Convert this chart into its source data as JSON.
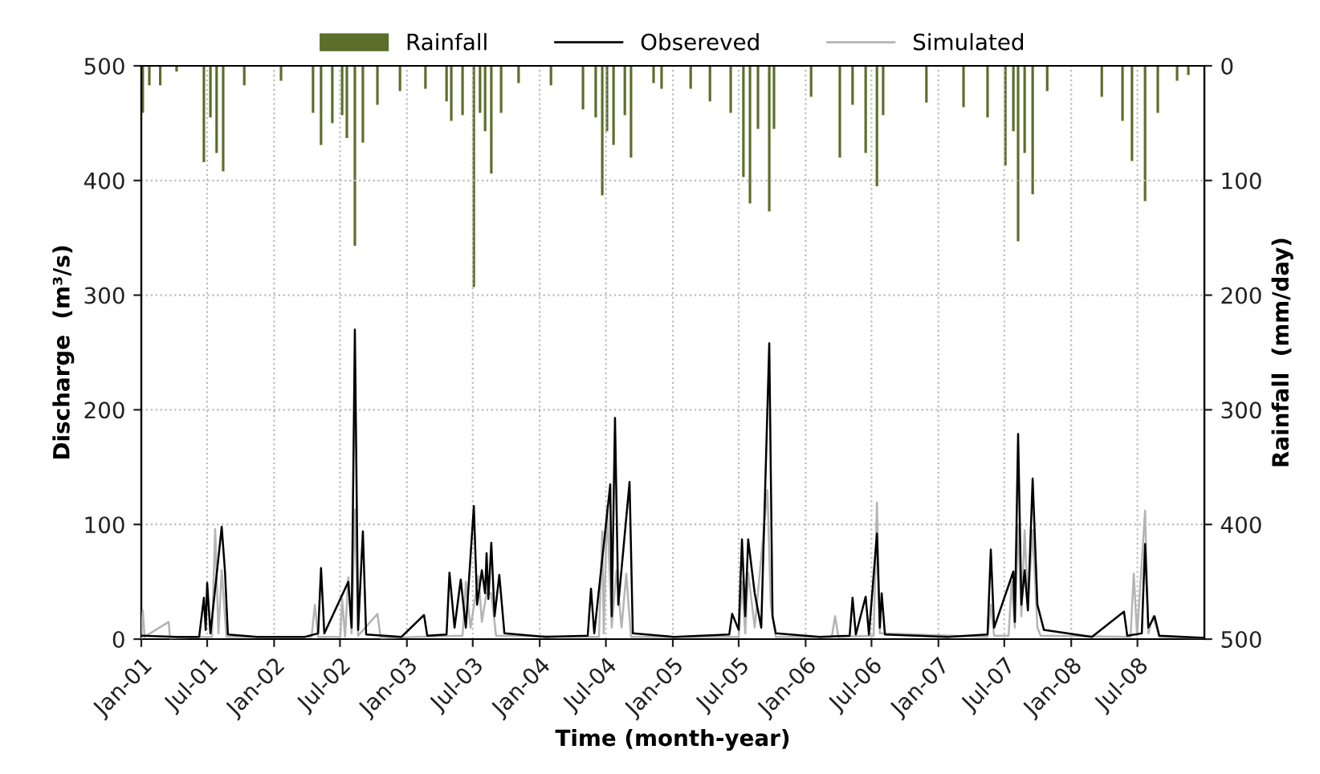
{
  "chart_data": {
    "type": "line",
    "xlabel": "Time (month-year)",
    "ylabel": "Discharge  (m³/s)",
    "y2label": "Rainfall  (mm/day)",
    "xlim": [
      "2001-01-01",
      "2009-01-01"
    ],
    "xticks": [
      {
        "value": "2001-01-01",
        "label": "Jan-01"
      },
      {
        "value": "2001-07-01",
        "label": "Jul-01"
      },
      {
        "value": "2002-01-01",
        "label": "Jan-02"
      },
      {
        "value": "2002-07-01",
        "label": "Jul-02"
      },
      {
        "value": "2003-01-01",
        "label": "Jan-03"
      },
      {
        "value": "2003-07-01",
        "label": "Jul-03"
      },
      {
        "value": "2004-01-01",
        "label": "Jan-04"
      },
      {
        "value": "2004-07-01",
        "label": "Jul-04"
      },
      {
        "value": "2005-01-01",
        "label": "Jan-05"
      },
      {
        "value": "2005-07-01",
        "label": "Jul-05"
      },
      {
        "value": "2006-01-01",
        "label": "Jan-06"
      },
      {
        "value": "2006-07-01",
        "label": "Jul-06"
      },
      {
        "value": "2007-01-01",
        "label": "Jan-07"
      },
      {
        "value": "2007-07-01",
        "label": "Jul-07"
      },
      {
        "value": "2008-01-01",
        "label": "Jan-08"
      },
      {
        "value": "2008-07-01",
        "label": "Jul-08"
      }
    ],
    "ylim": [
      0,
      500
    ],
    "yticks": [
      0,
      100,
      200,
      300,
      400,
      500
    ],
    "y2lim": [
      500,
      0
    ],
    "y2ticks": [
      0,
      100,
      200,
      300,
      400,
      500
    ],
    "grid": true,
    "legend": "top",
    "series": [
      {
        "name": "Rainfall",
        "type": "bar",
        "axis": "y2",
        "color": "#5b6e2a",
        "x": [
          "2001-01-05",
          "2001-01-23",
          "2001-02-22",
          "2001-04-08",
          "2001-06-22",
          "2001-07-10",
          "2001-07-27",
          "2001-08-14",
          "2001-10-11",
          "2002-01-20",
          "2002-04-18",
          "2002-05-10",
          "2002-06-10",
          "2002-07-07",
          "2002-07-20",
          "2002-08-11",
          "2002-09-02",
          "2002-10-12",
          "2002-12-13",
          "2003-02-21",
          "2003-04-20",
          "2003-05-03",
          "2003-06-03",
          "2003-07-04",
          "2003-07-21",
          "2003-08-04",
          "2003-08-21",
          "2003-09-17",
          "2003-11-04",
          "2004-02-01",
          "2004-04-29",
          "2004-06-03",
          "2004-06-21",
          "2004-07-04",
          "2004-07-22",
          "2004-08-22",
          "2004-09-08",
          "2004-11-09",
          "2004-12-01",
          "2005-02-19",
          "2005-04-13",
          "2005-06-09",
          "2005-07-14",
          "2005-08-01",
          "2005-08-23",
          "2005-09-23",
          "2005-10-06",
          "2006-01-16",
          "2006-04-05",
          "2006-05-10",
          "2006-06-15",
          "2006-07-16",
          "2006-08-02",
          "2006-11-29",
          "2007-03-11",
          "2007-05-16",
          "2007-07-04",
          "2007-07-26",
          "2007-08-08",
          "2007-08-26",
          "2007-09-17",
          "2007-10-27",
          "2008-03-25",
          "2008-05-21",
          "2008-06-16",
          "2008-07-22",
          "2008-08-26",
          "2008-10-18",
          "2008-11-18"
        ],
        "values": [
          41,
          17,
          17,
          5,
          84,
          45,
          76,
          92,
          17,
          13,
          41,
          69,
          50,
          43,
          63,
          157,
          67,
          34,
          22,
          20,
          31,
          48,
          43,
          193,
          41,
          57,
          94,
          41,
          15,
          17,
          38,
          45,
          113,
          57,
          69,
          43,
          80,
          15,
          20,
          20,
          31,
          41,
          97,
          120,
          55,
          127,
          55,
          27,
          80,
          34,
          76,
          105,
          43,
          32,
          36,
          45,
          87,
          57,
          153,
          76,
          112,
          22,
          27,
          48,
          83,
          118,
          41,
          13,
          8
        ]
      },
      {
        "name": "Simulated",
        "color": "#b4b4b4",
        "x": [
          "2001-01-01",
          "2001-01-05",
          "2001-01-10",
          "2001-03-17",
          "2001-03-21",
          "2001-07-14",
          "2001-07-23",
          "2001-08-01",
          "2001-08-10",
          "2001-08-23",
          "2002-04-14",
          "2002-04-23",
          "2002-05-02",
          "2002-07-02",
          "2002-07-07",
          "2002-07-15",
          "2002-07-24",
          "2002-08-02",
          "2002-08-11",
          "2002-08-20",
          "2002-10-12",
          "2002-10-21",
          "2003-06-03",
          "2003-06-12",
          "2003-06-25",
          "2003-07-17",
          "2003-07-26",
          "2003-08-08",
          "2003-08-21",
          "2003-09-03",
          "2004-06-12",
          "2004-06-21",
          "2004-06-25",
          "2004-07-04",
          "2004-07-17",
          "2004-07-30",
          "2004-08-13",
          "2004-08-26",
          "2004-09-08",
          "2005-07-01",
          "2005-07-10",
          "2005-07-19",
          "2005-07-27",
          "2005-08-14",
          "2005-09-18",
          "2005-09-27",
          "2005-10-11",
          "2006-03-14",
          "2006-03-23",
          "2006-04-01",
          "2006-07-07",
          "2006-07-16",
          "2006-07-24",
          "2007-05-16",
          "2007-05-25",
          "2007-06-03",
          "2007-07-13",
          "2007-07-21",
          "2007-07-30",
          "2007-08-08",
          "2007-08-17",
          "2007-08-26",
          "2007-09-04",
          "2007-09-17",
          "2007-09-30",
          "2007-10-09",
          "2008-06-12",
          "2008-06-21",
          "2008-06-30",
          "2008-07-22",
          "2008-07-31",
          "2008-08-13",
          "2008-08-30",
          "2008-12-31"
        ],
        "values": [
          1,
          25,
          2,
          15,
          1,
          2,
          96,
          5,
          60,
          2,
          2,
          30,
          2,
          2,
          35,
          2,
          54,
          5,
          113,
          3,
          22,
          1,
          3,
          50,
          10,
          55,
          15,
          40,
          40,
          3,
          2,
          94,
          5,
          116,
          10,
          60,
          10,
          57,
          2,
          2,
          50,
          5,
          58,
          10,
          130,
          30,
          2,
          2,
          20,
          2,
          3,
          119,
          5,
          2,
          30,
          3,
          3,
          50,
          10,
          100,
          20,
          95,
          30,
          95,
          10,
          3,
          2,
          57,
          3,
          112,
          5,
          20,
          2,
          1
        ]
      },
      {
        "name": "Obsereved",
        "color": "#000000",
        "x": [
          "2001-01-01",
          "2001-04-08",
          "2001-06-09",
          "2001-06-22",
          "2001-06-27",
          "2001-07-01",
          "2001-07-10",
          "2001-08-10",
          "2001-08-19",
          "2001-08-27",
          "2001-11-15",
          "2002-03-27",
          "2002-05-02",
          "2002-05-10",
          "2002-05-19",
          "2002-07-24",
          "2002-08-02",
          "2002-08-11",
          "2002-08-20",
          "2002-09-02",
          "2002-09-11",
          "2002-12-17",
          "2003-02-17",
          "2003-02-26",
          "2003-04-20",
          "2003-04-28",
          "2003-05-12",
          "2003-05-29",
          "2003-06-12",
          "2003-07-04",
          "2003-07-13",
          "2003-07-26",
          "2003-08-04",
          "2003-08-08",
          "2003-08-13",
          "2003-08-21",
          "2003-08-30",
          "2003-09-12",
          "2003-09-26",
          "2004-01-18",
          "2004-05-12",
          "2004-05-21",
          "2004-05-30",
          "2004-07-13",
          "2004-07-17",
          "2004-07-26",
          "2004-08-04",
          "2004-09-04",
          "2004-09-13",
          "2005-01-05",
          "2005-06-05",
          "2005-06-13",
          "2005-07-01",
          "2005-07-10",
          "2005-07-19",
          "2005-07-27",
          "2005-08-14",
          "2005-09-01",
          "2005-09-23",
          "2005-10-02",
          "2005-10-11",
          "2006-02-07",
          "2006-05-02",
          "2006-05-10",
          "2006-05-19",
          "2006-06-15",
          "2006-06-24",
          "2006-07-16",
          "2006-07-24",
          "2006-07-29",
          "2006-08-07",
          "2007-01-26",
          "2007-05-16",
          "2007-05-25",
          "2007-06-03",
          "2007-07-26",
          "2007-07-30",
          "2007-08-08",
          "2007-08-17",
          "2007-08-26",
          "2007-09-04",
          "2007-09-17",
          "2007-09-30",
          "2007-10-18",
          "2008-02-27",
          "2008-05-25",
          "2008-06-03",
          "2008-07-13",
          "2008-07-22",
          "2008-07-31",
          "2008-08-17",
          "2008-08-30",
          "2008-12-31"
        ],
        "values": [
          3,
          2,
          2,
          36,
          8,
          49,
          5,
          98,
          59,
          4,
          2,
          2,
          5,
          62,
          5,
          50,
          10,
          270,
          8,
          94,
          4,
          2,
          21,
          3,
          4,
          58,
          10,
          52,
          10,
          116,
          30,
          60,
          40,
          75,
          35,
          84,
          20,
          56,
          5,
          2,
          3,
          44,
          5,
          135,
          20,
          193,
          30,
          137,
          5,
          2,
          4,
          22,
          8,
          87,
          20,
          87,
          40,
          10,
          258,
          20,
          5,
          2,
          3,
          36,
          4,
          37,
          4,
          92,
          10,
          40,
          4,
          2,
          4,
          78,
          10,
          59,
          15,
          179,
          30,
          60,
          25,
          140,
          30,
          8,
          2,
          24,
          3,
          5,
          83,
          10,
          20,
          3,
          1
        ]
      }
    ]
  }
}
